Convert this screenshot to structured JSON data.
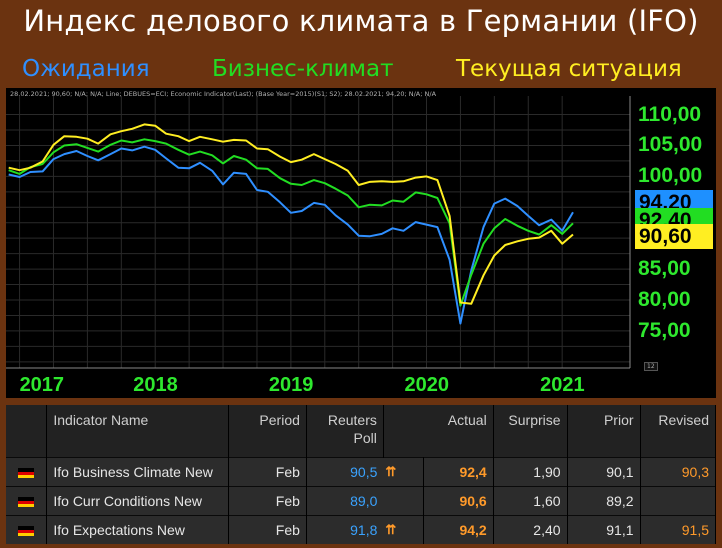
{
  "title": "Индекс делового климата в Германии (IFO)",
  "legend": [
    {
      "label": "Ожидания",
      "color": "#2f8fff"
    },
    {
      "label": "Бизнес-климат",
      "color": "#22dd22"
    },
    {
      "label": "Текущая ситуация",
      "color": "#ffee22"
    }
  ],
  "info_line": "28.02.2021; 90,60; N/A; N/A; Line; DEBUES=ECI; Economic Indicator(Last); (Base Year=2015)(S1; S2); 28.02.2021; 94,20; N/A; N/A",
  "chart_data": {
    "type": "line",
    "title": "Индекс делового климата в Германии (IFO)",
    "x_tick_labels": [
      "2017",
      "2018",
      "2019",
      "2020",
      "2021"
    ],
    "y_tick_labels": [
      "110,00",
      "105,00",
      "100,00",
      "85,00",
      "80,00",
      "75,00"
    ],
    "y_tick_values": [
      110,
      105,
      100,
      85,
      80,
      75
    ],
    "ylim": [
      69,
      113
    ],
    "xlim": [
      2016.9,
      2021.5
    ],
    "last_value_labels": [
      {
        "text": "94,20",
        "value": 94.2,
        "bg": "#1e90ff",
        "fg": "#000000"
      },
      {
        "text": "92,40",
        "value": 92.4,
        "bg": "#22dd22",
        "fg": "#000000"
      },
      {
        "text": "90,60",
        "value": 90.6,
        "bg": "#ffee22",
        "fg": "#000000"
      }
    ],
    "corner_label": "12",
    "series": [
      {
        "name": "Ожидания",
        "color": "#2f8fff",
        "x": [
          2016.92,
          2017.0,
          2017.08,
          2017.17,
          2017.25,
          2017.33,
          2017.42,
          2017.5,
          2017.58,
          2017.67,
          2017.75,
          2017.83,
          2017.92,
          2018.0,
          2018.08,
          2018.17,
          2018.25,
          2018.33,
          2018.42,
          2018.5,
          2018.58,
          2018.67,
          2018.75,
          2018.83,
          2018.92,
          2019.0,
          2019.08,
          2019.17,
          2019.25,
          2019.33,
          2019.42,
          2019.5,
          2019.58,
          2019.67,
          2019.75,
          2019.83,
          2019.92,
          2020.0,
          2020.08,
          2020.17,
          2020.25,
          2020.33,
          2020.42,
          2020.5,
          2020.58,
          2020.67,
          2020.75,
          2020.83,
          2020.92,
          2021.0,
          2021.08
        ],
        "y": [
          100.3,
          99.9,
          100.7,
          100.8,
          102.8,
          103.6,
          104.1,
          103.3,
          102.6,
          103.6,
          104.5,
          104.2,
          104.8,
          104.3,
          102.9,
          101.4,
          101.3,
          102.2,
          100.9,
          98.7,
          100.6,
          100.4,
          97.8,
          97.5,
          95.8,
          94.1,
          94.4,
          95.7,
          95.4,
          93.7,
          92.2,
          90.4,
          90.3,
          90.7,
          91.6,
          91.2,
          92.6,
          92.2,
          91.8,
          86.5,
          76.2,
          84.8,
          91.8,
          95.6,
          96.4,
          95.2,
          93.6,
          92.1,
          93.0,
          91.2,
          94.2
        ]
      },
      {
        "name": "Бизнес-климат",
        "color": "#22dd22",
        "x": [
          2016.92,
          2017.0,
          2017.08,
          2017.17,
          2017.25,
          2017.33,
          2017.42,
          2017.5,
          2017.58,
          2017.67,
          2017.75,
          2017.83,
          2017.92,
          2018.0,
          2018.08,
          2018.17,
          2018.25,
          2018.33,
          2018.42,
          2018.5,
          2018.58,
          2018.67,
          2018.75,
          2018.83,
          2018.92,
          2019.0,
          2019.08,
          2019.17,
          2019.25,
          2019.33,
          2019.42,
          2019.5,
          2019.58,
          2019.67,
          2019.75,
          2019.83,
          2019.92,
          2020.0,
          2020.08,
          2020.17,
          2020.25,
          2020.33,
          2020.42,
          2020.5,
          2020.58,
          2020.67,
          2020.75,
          2020.83,
          2020.92,
          2021.0,
          2021.08
        ],
        "y": [
          101.0,
          100.4,
          101.5,
          102.0,
          103.9,
          105.0,
          105.2,
          104.6,
          104.0,
          105.1,
          105.8,
          105.5,
          106.0,
          105.7,
          105.3,
          104.3,
          103.5,
          104.0,
          103.4,
          102.1,
          103.3,
          102.7,
          101.3,
          101.2,
          99.7,
          98.8,
          98.6,
          99.4,
          98.9,
          98.0,
          96.9,
          95.0,
          95.4,
          95.3,
          96.1,
          95.9,
          97.4,
          97.1,
          96.5,
          92.4,
          79.1,
          84.1,
          89.1,
          91.6,
          93.1,
          92.0,
          91.2,
          90.6,
          92.1,
          90.7,
          92.4
        ]
      },
      {
        "name": "Текущая ситуация",
        "color": "#ffee22",
        "x": [
          2016.92,
          2017.0,
          2017.08,
          2017.17,
          2017.25,
          2017.33,
          2017.42,
          2017.5,
          2017.58,
          2017.67,
          2017.75,
          2017.83,
          2017.92,
          2018.0,
          2018.08,
          2018.17,
          2018.25,
          2018.33,
          2018.42,
          2018.5,
          2018.58,
          2018.67,
          2018.75,
          2018.83,
          2018.92,
          2019.0,
          2019.08,
          2019.17,
          2019.25,
          2019.33,
          2019.42,
          2019.5,
          2019.58,
          2019.67,
          2019.75,
          2019.83,
          2019.92,
          2020.0,
          2020.08,
          2020.17,
          2020.25,
          2020.33,
          2020.42,
          2020.5,
          2020.58,
          2020.67,
          2020.75,
          2020.83,
          2020.92,
          2021.0,
          2021.08
        ],
        "y": [
          101.4,
          101.0,
          101.4,
          102.4,
          105.1,
          106.5,
          106.4,
          106.1,
          105.3,
          106.8,
          107.3,
          107.7,
          108.4,
          108.2,
          106.9,
          106.5,
          105.7,
          106.4,
          106.0,
          105.6,
          105.9,
          105.8,
          104.5,
          104.4,
          103.2,
          102.3,
          102.7,
          103.6,
          102.8,
          102.0,
          100.9,
          98.6,
          99.1,
          99.2,
          99.1,
          99.2,
          99.8,
          100.0,
          99.4,
          93.6,
          79.6,
          79.4,
          84.0,
          87.2,
          88.9,
          89.5,
          89.9,
          90.1,
          91.2,
          89.1,
          90.6
        ]
      }
    ]
  },
  "table": {
    "headers": [
      "",
      "Indicator Name",
      "Period",
      "Reuters Poll",
      "",
      "Actual",
      "Surprise",
      "Prior",
      "Revised"
    ],
    "rows": [
      {
        "name": "Ifo Business Climate New",
        "period": "Feb",
        "poll": "90,5",
        "flag_arrows": "⇈",
        "actual": "92,4",
        "surprise": "1,90",
        "prior": "90,1",
        "revised": "90,3"
      },
      {
        "name": "Ifo Curr Conditions New",
        "period": "Feb",
        "poll": "89,0",
        "flag_arrows": "",
        "actual": "90,6",
        "surprise": "1,60",
        "prior": "89,2",
        "revised": ""
      },
      {
        "name": "Ifo Expectations New",
        "period": "Feb",
        "poll": "91,8",
        "flag_arrows": "⇈",
        "actual": "94,2",
        "surprise": "2,40",
        "prior": "91,1",
        "revised": "91,5"
      }
    ]
  }
}
